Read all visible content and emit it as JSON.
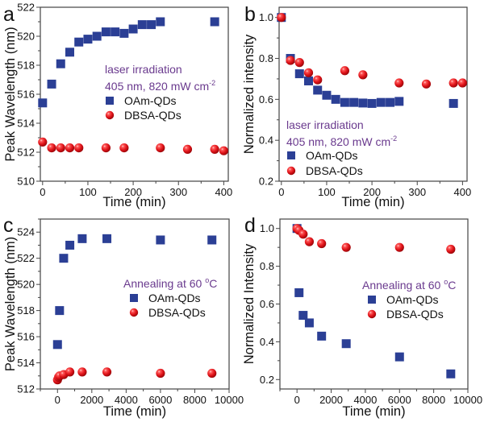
{
  "figure": {
    "colors": {
      "oam_square": "#2b3f95",
      "dbsa_sphere": "#e0141a",
      "annotation": "#6a3a8e"
    }
  },
  "chart_data": [
    {
      "panel": "a",
      "type": "scatter",
      "title": "",
      "xlabel": "Time (min)",
      "ylabel": "Peak Wavelength (nm)",
      "xlim": [
        -5,
        410
      ],
      "ylim": [
        510,
        522
      ],
      "xticks": [
        0,
        100,
        200,
        300,
        400
      ],
      "yticks": [
        510,
        512,
        514,
        516,
        518,
        520,
        522
      ],
      "annotation": [
        "laser irradiation",
        "405 nm, 820 mW cm",
        "-2"
      ],
      "legend_position": "center-right",
      "series": [
        {
          "name": "OAm-QDs",
          "marker": "square",
          "x": [
            0,
            20,
            40,
            60,
            80,
            100,
            120,
            140,
            160,
            180,
            200,
            220,
            240,
            260,
            380
          ],
          "y": [
            515.4,
            516.7,
            518.1,
            518.9,
            519.6,
            519.8,
            520.0,
            520.3,
            520.3,
            520.2,
            520.5,
            520.8,
            520.8,
            521.0,
            521.0
          ]
        },
        {
          "name": "DBSA-QDs",
          "marker": "sphere",
          "x": [
            0,
            20,
            40,
            60,
            80,
            140,
            180,
            260,
            320,
            380,
            400
          ],
          "y": [
            512.7,
            512.3,
            512.3,
            512.3,
            512.3,
            512.3,
            512.3,
            512.3,
            512.2,
            512.2,
            512.1
          ]
        }
      ]
    },
    {
      "panel": "b",
      "type": "scatter",
      "title": "",
      "xlabel": "Time (min)",
      "ylabel": "Normalized intensity",
      "xlim": [
        -5,
        410
      ],
      "ylim": [
        0.2,
        1.05
      ],
      "xticks": [
        0,
        100,
        200,
        300,
        400
      ],
      "yticks": [
        0.2,
        0.4,
        0.6,
        0.8,
        1.0
      ],
      "annotation": [
        "laser irradiation",
        "405 nm, 820 mW cm",
        "-2"
      ],
      "legend_position": "bottom-left",
      "series": [
        {
          "name": "OAm-QDs",
          "marker": "square",
          "x": [
            0,
            20,
            40,
            60,
            80,
            100,
            120,
            140,
            160,
            180,
            200,
            220,
            240,
            260,
            380
          ],
          "y": [
            1.0,
            0.8,
            0.725,
            0.69,
            0.645,
            0.62,
            0.6,
            0.585,
            0.585,
            0.582,
            0.58,
            0.585,
            0.585,
            0.59,
            0.58
          ]
        },
        {
          "name": "DBSA-QDs",
          "marker": "sphere",
          "x": [
            0,
            20,
            40,
            60,
            80,
            140,
            180,
            260,
            320,
            380,
            400
          ],
          "y": [
            1.0,
            0.79,
            0.78,
            0.73,
            0.695,
            0.74,
            0.72,
            0.68,
            0.675,
            0.68,
            0.68
          ]
        }
      ]
    },
    {
      "panel": "c",
      "type": "scatter",
      "title": "",
      "xlabel": "Time (min)",
      "ylabel": "Peak Wavelength (nm)",
      "xlim": [
        -1000,
        10000
      ],
      "ylim": [
        512,
        525
      ],
      "xticks": [
        0,
        2000,
        4000,
        6000,
        8000,
        10000
      ],
      "yticks": [
        512,
        514,
        516,
        518,
        520,
        522,
        524
      ],
      "annotation": [
        "Annealing at 60 ",
        "o",
        "C"
      ],
      "legend_position": "center-right",
      "series": [
        {
          "name": "OAm-QDs",
          "marker": "square",
          "x": [
            0,
            120,
            360,
            720,
            1440,
            2880,
            6000,
            9000
          ],
          "y": [
            515.4,
            518.0,
            522.0,
            523.0,
            523.5,
            523.5,
            523.4,
            523.4
          ]
        },
        {
          "name": "DBSA-QDs",
          "marker": "sphere",
          "x": [
            0,
            60,
            120,
            360,
            720,
            1440,
            2880,
            6000,
            9000
          ],
          "y": [
            512.7,
            512.9,
            513.0,
            513.1,
            513.3,
            513.3,
            513.3,
            513.2,
            513.2
          ]
        }
      ]
    },
    {
      "panel": "d",
      "type": "scatter",
      "title": "",
      "xlabel": "Time (min)",
      "ylabel": "Normalized Intensity",
      "xlim": [
        -1000,
        10000
      ],
      "ylim": [
        0.15,
        1.05
      ],
      "xticks": [
        0,
        2000,
        4000,
        6000,
        8000,
        10000
      ],
      "yticks": [
        0.2,
        0.4,
        0.6,
        0.8,
        1.0
      ],
      "annotation": [
        "Annealing at 60 ",
        "o",
        "C"
      ],
      "legend_position": "center-right",
      "series": [
        {
          "name": "OAm-QDs",
          "marker": "square",
          "x": [
            0,
            120,
            360,
            720,
            1440,
            2880,
            6000,
            9000
          ],
          "y": [
            1.0,
            0.66,
            0.54,
            0.5,
            0.43,
            0.39,
            0.32,
            0.23
          ]
        },
        {
          "name": "DBSA-QDs",
          "marker": "sphere",
          "x": [
            0,
            120,
            360,
            720,
            1440,
            2880,
            6000,
            9000
          ],
          "y": [
            1.0,
            0.99,
            0.97,
            0.93,
            0.92,
            0.9,
            0.9,
            0.89
          ]
        }
      ]
    }
  ]
}
